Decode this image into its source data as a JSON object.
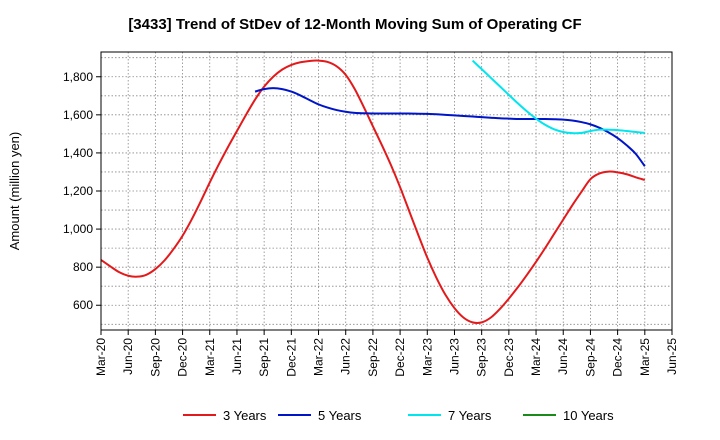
{
  "chart_data": {
    "type": "line",
    "title": "[3433]  Trend of StDev of 12-Month Moving Sum of Operating CF",
    "xlabel": "",
    "ylabel": "Amount (million yen)",
    "x_tick_labels": [
      "Mar-20",
      "Jun-20",
      "Sep-20",
      "Dec-20",
      "Mar-21",
      "Jun-21",
      "Sep-21",
      "Dec-21",
      "Mar-22",
      "Jun-22",
      "Sep-22",
      "Dec-22",
      "Mar-23",
      "Jun-23",
      "Sep-23",
      "Dec-23",
      "Mar-24",
      "Jun-24",
      "Sep-24",
      "Dec-24",
      "Mar-25",
      "Jun-25"
    ],
    "y_ticks": [
      600,
      800,
      1000,
      1200,
      1400,
      1600,
      1800
    ],
    "y_tick_labels": [
      "600",
      "800",
      "1,000",
      "1,200",
      "1,400",
      "1,600",
      "1,800"
    ],
    "ylim": [
      470,
      1930
    ],
    "grid": true,
    "legend_position": "bottom",
    "series": [
      {
        "name": "3 Years",
        "color": "#e31a1c",
        "points": [
          [
            "Mar-20",
            838
          ],
          [
            "Apr-20",
            805
          ],
          [
            "May-20",
            774
          ],
          [
            "Jun-20",
            755
          ],
          [
            "Jul-20",
            750
          ],
          [
            "Aug-20",
            760
          ],
          [
            "Sep-20",
            790
          ],
          [
            "Oct-20",
            835
          ],
          [
            "Nov-20",
            895
          ],
          [
            "Dec-20",
            965
          ],
          [
            "Jan-21",
            1050
          ],
          [
            "Feb-21",
            1145
          ],
          [
            "Mar-21",
            1245
          ],
          [
            "Apr-21",
            1340
          ],
          [
            "May-21",
            1430
          ],
          [
            "Jun-21",
            1515
          ],
          [
            "Jul-21",
            1600
          ],
          [
            "Aug-21",
            1680
          ],
          [
            "Sep-21",
            1748
          ],
          [
            "Oct-21",
            1800
          ],
          [
            "Nov-21",
            1838
          ],
          [
            "Dec-21",
            1862
          ],
          [
            "Jan-22",
            1876
          ],
          [
            "Feb-22",
            1883
          ],
          [
            "Mar-22",
            1885
          ],
          [
            "Apr-22",
            1878
          ],
          [
            "May-22",
            1855
          ],
          [
            "Jun-22",
            1810
          ],
          [
            "Jul-22",
            1735
          ],
          [
            "Aug-22",
            1640
          ],
          [
            "Sep-22",
            1540
          ],
          [
            "Oct-22",
            1440
          ],
          [
            "Nov-22",
            1335
          ],
          [
            "Dec-22",
            1220
          ],
          [
            "Jan-23",
            1095
          ],
          [
            "Feb-23",
            970
          ],
          [
            "Mar-23",
            850
          ],
          [
            "Apr-23",
            745
          ],
          [
            "May-23",
            655
          ],
          [
            "Jun-23",
            585
          ],
          [
            "Jul-23",
            535
          ],
          [
            "Aug-23",
            510
          ],
          [
            "Sep-23",
            510
          ],
          [
            "Oct-23",
            535
          ],
          [
            "Nov-23",
            580
          ],
          [
            "Dec-23",
            635
          ],
          [
            "Jan-24",
            695
          ],
          [
            "Feb-24",
            760
          ],
          [
            "Mar-24",
            828
          ],
          [
            "Apr-24",
            900
          ],
          [
            "May-24",
            975
          ],
          [
            "Jun-24",
            1050
          ],
          [
            "Jul-24",
            1125
          ],
          [
            "Aug-24",
            1195
          ],
          [
            "Sep-24",
            1262
          ],
          [
            "Oct-24",
            1292
          ],
          [
            "Nov-24",
            1302
          ],
          [
            "Dec-24",
            1298
          ],
          [
            "Jan-25",
            1288
          ],
          [
            "Feb-25",
            1272
          ],
          [
            "Mar-25",
            1258
          ]
        ]
      },
      {
        "name": "5 Years",
        "color": "#0015c8",
        "points": [
          [
            "Aug-21",
            1722
          ],
          [
            "Sep-21",
            1735
          ],
          [
            "Oct-21",
            1740
          ],
          [
            "Nov-21",
            1735
          ],
          [
            "Dec-21",
            1722
          ],
          [
            "Jan-22",
            1702
          ],
          [
            "Feb-22",
            1678
          ],
          [
            "Mar-22",
            1655
          ],
          [
            "Apr-22",
            1638
          ],
          [
            "May-22",
            1625
          ],
          [
            "Jun-22",
            1616
          ],
          [
            "Jul-22",
            1610
          ],
          [
            "Aug-22",
            1608
          ],
          [
            "Sep-22",
            1607
          ],
          [
            "Oct-22",
            1607
          ],
          [
            "Nov-22",
            1607
          ],
          [
            "Dec-22",
            1607
          ],
          [
            "Jan-23",
            1607
          ],
          [
            "Feb-23",
            1606
          ],
          [
            "Mar-23",
            1605
          ],
          [
            "Apr-23",
            1603
          ],
          [
            "May-23",
            1600
          ],
          [
            "Jun-23",
            1597
          ],
          [
            "Jul-23",
            1594
          ],
          [
            "Aug-23",
            1591
          ],
          [
            "Sep-23",
            1588
          ],
          [
            "Oct-23",
            1585
          ],
          [
            "Nov-23",
            1582
          ],
          [
            "Dec-23",
            1580
          ],
          [
            "Jan-24",
            1578
          ],
          [
            "Feb-24",
            1578
          ],
          [
            "Mar-24",
            1578
          ],
          [
            "Apr-24",
            1578
          ],
          [
            "May-24",
            1577
          ],
          [
            "Jun-24",
            1575
          ],
          [
            "Jul-24",
            1570
          ],
          [
            "Aug-24",
            1562
          ],
          [
            "Sep-24",
            1550
          ],
          [
            "Oct-24",
            1532
          ],
          [
            "Nov-24",
            1508
          ],
          [
            "Dec-24",
            1478
          ],
          [
            "Jan-25",
            1440
          ],
          [
            "Feb-25",
            1395
          ],
          [
            "Mar-25",
            1330
          ]
        ]
      },
      {
        "name": "7 Years",
        "color": "#00e5ee",
        "points": [
          [
            "Aug-23",
            1885
          ],
          [
            "Sep-23",
            1840
          ],
          [
            "Oct-23",
            1795
          ],
          [
            "Nov-23",
            1750
          ],
          [
            "Dec-23",
            1705
          ],
          [
            "Jan-24",
            1660
          ],
          [
            "Feb-24",
            1618
          ],
          [
            "Mar-24",
            1580
          ],
          [
            "Apr-24",
            1548
          ],
          [
            "May-24",
            1524
          ],
          [
            "Jun-24",
            1510
          ],
          [
            "Jul-24",
            1504
          ],
          [
            "Aug-24",
            1505
          ],
          [
            "Sep-24",
            1515
          ],
          [
            "Oct-24",
            1522
          ],
          [
            "Nov-24",
            1522
          ],
          [
            "Dec-24",
            1520
          ],
          [
            "Jan-25",
            1515
          ],
          [
            "Feb-25",
            1510
          ],
          [
            "Mar-25",
            1505
          ]
        ]
      },
      {
        "name": "10 Years",
        "color": "#1a8a1a",
        "points": []
      }
    ]
  }
}
